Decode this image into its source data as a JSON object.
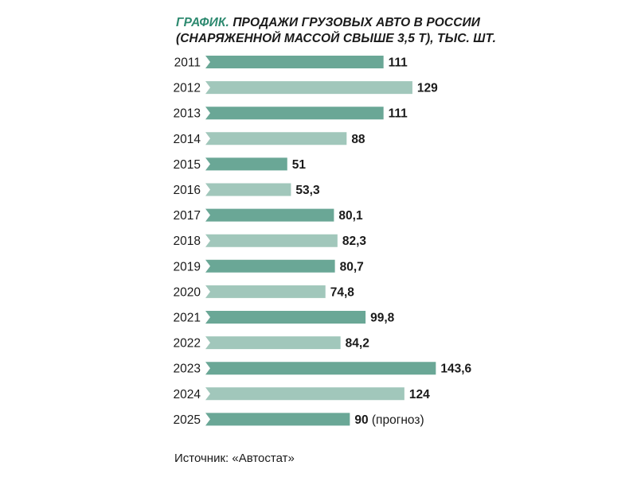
{
  "title": {
    "prefix": "ГРАФИК.",
    "line1": "ПРОДАЖИ ГРУЗОВЫХ АВТО В РОССИИ",
    "line2": "(СНАРЯЖЕННОЙ МАССОЙ СВЫШЕ 3,5 Т), ТЫС. ШТ."
  },
  "source": "Источник: «Автостат»",
  "colors": {
    "dark": "#6aa796",
    "light": "#a1c7bb",
    "accent": "#2e8a70",
    "text": "#1a1a1a"
  },
  "chart_data": {
    "type": "bar",
    "orientation": "horizontal",
    "categories": [
      "2011",
      "2012",
      "2013",
      "2014",
      "2015",
      "2016",
      "2017",
      "2018",
      "2019",
      "2020",
      "2021",
      "2022",
      "2023",
      "2024",
      "2025"
    ],
    "values": [
      111,
      129,
      111,
      88,
      51,
      53.3,
      80.1,
      82.3,
      80.7,
      74.8,
      99.8,
      84.2,
      143.6,
      124,
      90
    ],
    "value_labels": [
      "111",
      "129",
      "111",
      "88",
      "51",
      "53,3",
      "80,1",
      "82,3",
      "80,7",
      "74,8",
      "99,8",
      "84,2",
      "143,6",
      "124",
      "90 (прогноз)"
    ],
    "bar_colors": [
      "dark",
      "light",
      "dark",
      "light",
      "dark",
      "light",
      "dark",
      "light",
      "dark",
      "light",
      "dark",
      "light",
      "dark",
      "light",
      "dark"
    ],
    "title": "ГРАФИК. ПРОДАЖИ ГРУЗОВЫХ АВТО В РОССИИ (СНАРЯЖЕННОЙ МАССОЙ СВЫШЕ 3,5 Т), ТЫС. ШТ.",
    "xlabel": "",
    "ylabel": "",
    "grid": false,
    "legend": "none"
  }
}
